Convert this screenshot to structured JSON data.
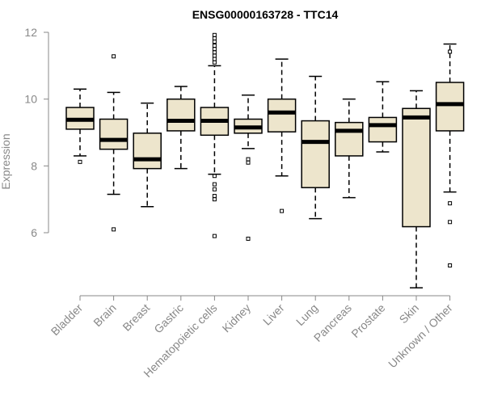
{
  "chart_data": {
    "type": "boxplot",
    "title": "ENSG00000163728 - TTC14",
    "xlabel": "",
    "ylabel": "Expression",
    "ylim": [
      4.2,
      12.1
    ],
    "yticks": [
      6,
      8,
      10,
      12
    ],
    "box_color": "#ede5cc",
    "categories": [
      "Bladder",
      "Brain",
      "Breast",
      "Gastric",
      "Hematopoietic cells",
      "Kidney",
      "Liver",
      "Lung",
      "Pancreas",
      "Prostate",
      "Skin",
      "Unknown / Other"
    ],
    "boxes": [
      {
        "whisker_low": 8.3,
        "q1": 9.1,
        "median": 9.38,
        "q3": 9.75,
        "whisker_high": 10.3,
        "outliers": [
          8.12
        ]
      },
      {
        "whisker_low": 7.15,
        "q1": 8.5,
        "median": 8.78,
        "q3": 9.4,
        "whisker_high": 10.2,
        "outliers": [
          11.28,
          6.1
        ]
      },
      {
        "whisker_low": 6.78,
        "q1": 7.92,
        "median": 8.2,
        "q3": 8.98,
        "whisker_high": 9.88,
        "outliers": []
      },
      {
        "whisker_low": 7.92,
        "q1": 9.05,
        "median": 9.35,
        "q3": 10.0,
        "whisker_high": 10.38,
        "outliers": []
      },
      {
        "whisker_low": 7.75,
        "q1": 8.92,
        "median": 9.35,
        "q3": 9.75,
        "whisker_high": 11.0,
        "outliers": [
          11.92,
          11.82,
          11.72,
          11.6,
          11.5,
          11.4,
          11.3,
          11.2,
          11.1,
          7.7,
          7.45,
          7.3,
          7.1,
          7.0,
          5.9
        ]
      },
      {
        "whisker_low": 8.52,
        "q1": 8.98,
        "median": 9.15,
        "q3": 9.4,
        "whisker_high": 10.12,
        "outliers": [
          8.2,
          8.1,
          5.82
        ]
      },
      {
        "whisker_low": 7.7,
        "q1": 9.02,
        "median": 9.6,
        "q3": 10.0,
        "whisker_high": 11.2,
        "outliers": [
          6.65
        ]
      },
      {
        "whisker_low": 6.42,
        "q1": 7.35,
        "median": 8.72,
        "q3": 9.35,
        "whisker_high": 10.68,
        "outliers": []
      },
      {
        "whisker_low": 7.05,
        "q1": 8.3,
        "median": 9.05,
        "q3": 9.3,
        "whisker_high": 10.0,
        "outliers": []
      },
      {
        "whisker_low": 8.42,
        "q1": 8.72,
        "median": 9.22,
        "q3": 9.45,
        "whisker_high": 10.52,
        "outliers": []
      },
      {
        "whisker_low": 4.35,
        "q1": 6.18,
        "median": 9.45,
        "q3": 9.72,
        "whisker_high": 10.25,
        "outliers": []
      },
      {
        "whisker_low": 7.22,
        "q1": 9.05,
        "median": 9.85,
        "q3": 10.5,
        "whisker_high": 11.65,
        "outliers": [
          11.42,
          6.88,
          6.32,
          5.02
        ]
      }
    ]
  }
}
